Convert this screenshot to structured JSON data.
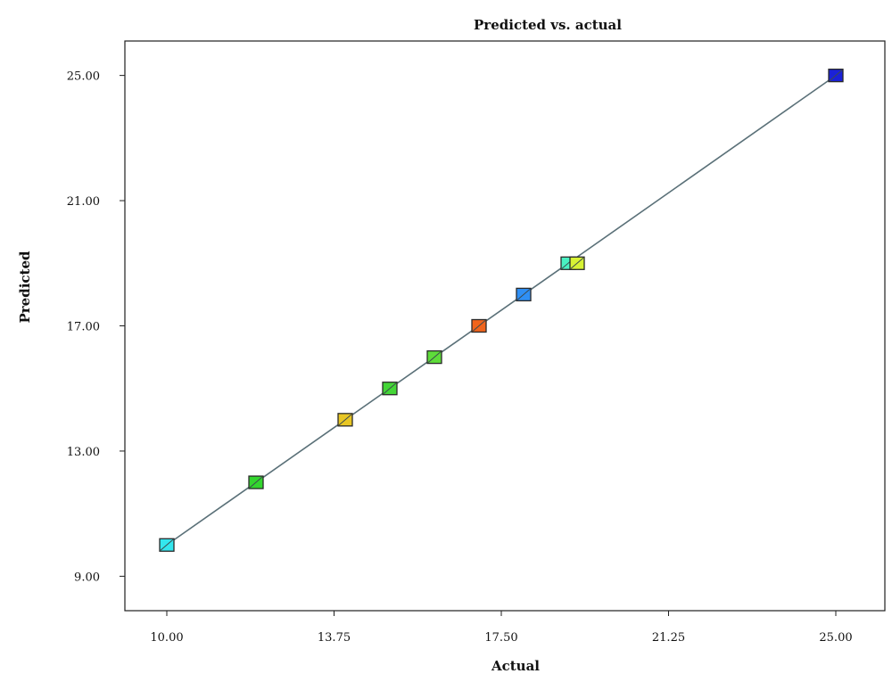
{
  "chart_data": {
    "type": "scatter",
    "title": "Predicted vs. actual",
    "xlabel": "Actual",
    "ylabel": "Predicted",
    "xlim": [
      9.06,
      26.1
    ],
    "ylim": [
      7.9,
      26.1
    ],
    "x_ticks": [
      "10.00",
      "13.75",
      "17.50",
      "21.25",
      "25.00"
    ],
    "y_ticks": [
      "9.00",
      "13.00",
      "17.00",
      "21.00",
      "25.00"
    ],
    "fit_line": {
      "from": [
        10,
        10
      ],
      "to": [
        25,
        25
      ],
      "color": "#5a7078"
    },
    "points": [
      {
        "x": 10.0,
        "y": 10.0,
        "color": "#33e6ee"
      },
      {
        "x": 12.0,
        "y": 12.0,
        "color": "#33d62e"
      },
      {
        "x": 14.0,
        "y": 14.0,
        "color": "#e8c623"
      },
      {
        "x": 15.0,
        "y": 15.0,
        "color": "#44d637"
      },
      {
        "x": 16.0,
        "y": 16.0,
        "color": "#5edc3a"
      },
      {
        "x": 17.0,
        "y": 17.0,
        "color": "#f0641c"
      },
      {
        "x": 18.0,
        "y": 18.0,
        "color": "#2f8ff5"
      },
      {
        "x": 19.0,
        "y": 19.0,
        "color": "#49f0c2"
      },
      {
        "x": 19.2,
        "y": 19.0,
        "color": "#d7f234"
      },
      {
        "x": 25.0,
        "y": 25.0,
        "color": "#1b21d8"
      }
    ],
    "grid": false,
    "legend": "none"
  }
}
